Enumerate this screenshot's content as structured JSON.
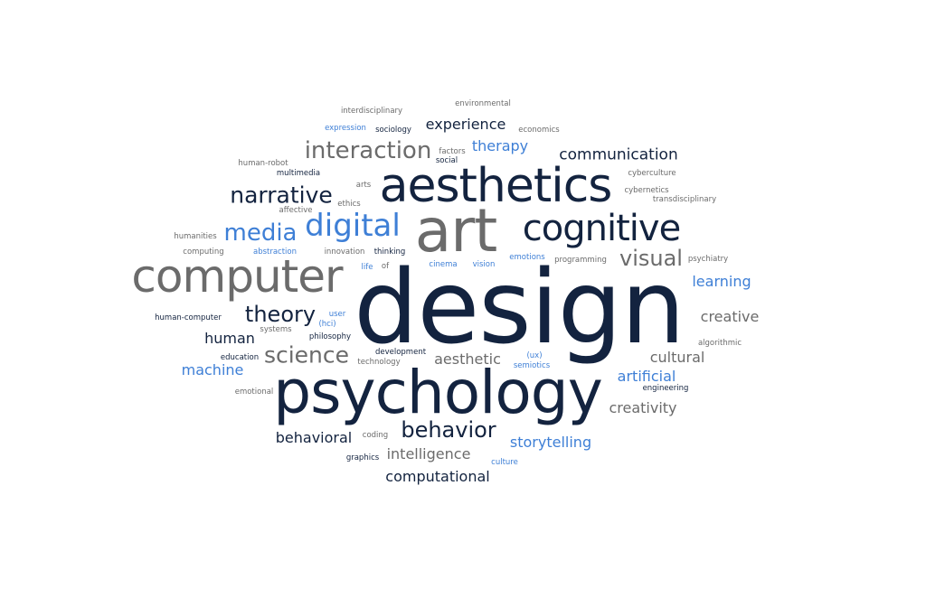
{
  "colors": {
    "navy": "#13233f",
    "gray": "#6b6b6b",
    "blue": "#3e7fd6"
  },
  "words": [
    {
      "text": "design",
      "color": "navy"
    },
    {
      "text": "psychology",
      "color": "navy"
    },
    {
      "text": "computer",
      "color": "gray"
    },
    {
      "text": "art",
      "color": "gray"
    },
    {
      "text": "aesthetics",
      "color": "navy"
    },
    {
      "text": "cognitive",
      "color": "navy"
    },
    {
      "text": "digital",
      "color": "blue"
    },
    {
      "text": "media",
      "color": "blue"
    },
    {
      "text": "interaction",
      "color": "gray"
    },
    {
      "text": "narrative",
      "color": "navy"
    },
    {
      "text": "behavior",
      "color": "navy"
    },
    {
      "text": "science",
      "color": "gray"
    },
    {
      "text": "theory",
      "color": "navy"
    },
    {
      "text": "visual",
      "color": "gray"
    },
    {
      "text": "communication",
      "color": "navy"
    },
    {
      "text": "experience",
      "color": "navy"
    },
    {
      "text": "therapy",
      "color": "blue"
    },
    {
      "text": "learning",
      "color": "blue"
    },
    {
      "text": "creative",
      "color": "gray"
    },
    {
      "text": "human",
      "color": "navy"
    },
    {
      "text": "machine",
      "color": "blue"
    },
    {
      "text": "aesthetic",
      "color": "gray"
    },
    {
      "text": "cultural",
      "color": "gray"
    },
    {
      "text": "artificial",
      "color": "blue"
    },
    {
      "text": "creativity",
      "color": "gray"
    },
    {
      "text": "behavioral",
      "color": "navy"
    },
    {
      "text": "intelligence",
      "color": "gray"
    },
    {
      "text": "storytelling",
      "color": "blue"
    },
    {
      "text": "computational",
      "color": "navy"
    },
    {
      "text": "environmental",
      "color": "gray"
    },
    {
      "text": "interdisciplinary",
      "color": "gray"
    },
    {
      "text": "expression",
      "color": "blue"
    },
    {
      "text": "sociology",
      "color": "navy"
    },
    {
      "text": "economics",
      "color": "gray"
    },
    {
      "text": "factors",
      "color": "gray"
    },
    {
      "text": "social",
      "color": "navy"
    },
    {
      "text": "human-robot",
      "color": "gray"
    },
    {
      "text": "multimedia",
      "color": "navy"
    },
    {
      "text": "cyberculture",
      "color": "gray"
    },
    {
      "text": "arts",
      "color": "gray"
    },
    {
      "text": "cybernetics",
      "color": "gray"
    },
    {
      "text": "transdisciplinary",
      "color": "gray"
    },
    {
      "text": "ethics",
      "color": "gray"
    },
    {
      "text": "affective",
      "color": "gray"
    },
    {
      "text": "humanities",
      "color": "gray"
    },
    {
      "text": "computing",
      "color": "gray"
    },
    {
      "text": "abstraction",
      "color": "blue"
    },
    {
      "text": "innovation",
      "color": "gray"
    },
    {
      "text": "thinking",
      "color": "navy"
    },
    {
      "text": "emotions",
      "color": "blue"
    },
    {
      "text": "programming",
      "color": "gray"
    },
    {
      "text": "psychiatry",
      "color": "gray"
    },
    {
      "text": "life",
      "color": "blue"
    },
    {
      "text": "of",
      "color": "gray"
    },
    {
      "text": "cinema",
      "color": "blue"
    },
    {
      "text": "vision",
      "color": "blue"
    },
    {
      "text": "human-computer",
      "color": "navy"
    },
    {
      "text": "user",
      "color": "blue"
    },
    {
      "text": "(hci)",
      "color": "blue"
    },
    {
      "text": "systems",
      "color": "gray"
    },
    {
      "text": "philosophy",
      "color": "navy"
    },
    {
      "text": "algorithmic",
      "color": "gray"
    },
    {
      "text": "education",
      "color": "navy"
    },
    {
      "text": "development",
      "color": "navy"
    },
    {
      "text": "technology",
      "color": "gray"
    },
    {
      "text": "(ux)",
      "color": "blue"
    },
    {
      "text": "semiotics",
      "color": "blue"
    },
    {
      "text": "engineering",
      "color": "navy"
    },
    {
      "text": "emotional",
      "color": "gray"
    },
    {
      "text": "coding",
      "color": "gray"
    },
    {
      "text": "graphics",
      "color": "navy"
    },
    {
      "text": "culture",
      "color": "blue"
    }
  ]
}
